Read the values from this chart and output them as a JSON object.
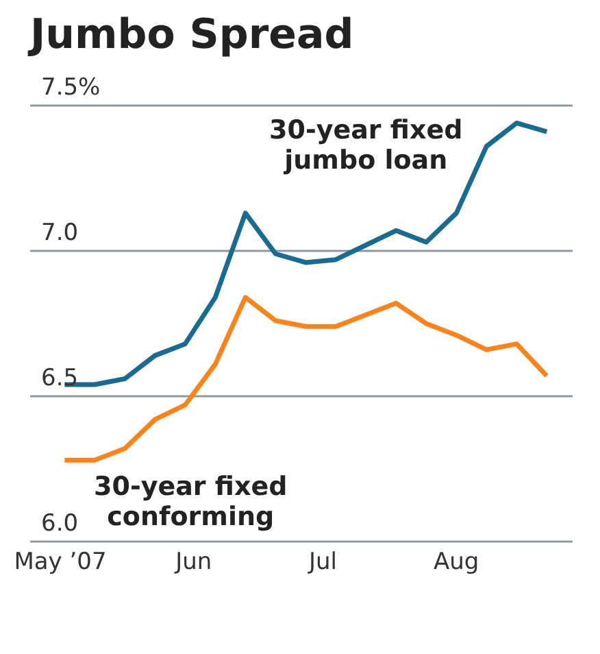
{
  "chart_data": {
    "type": "line",
    "title": "Jumbo Spread",
    "x": [
      "2007-05-02",
      "2007-05-09",
      "2007-05-16",
      "2007-05-23",
      "2007-05-30",
      "2007-06-06",
      "2007-06-13",
      "2007-06-20",
      "2007-06-27",
      "2007-07-04",
      "2007-07-11",
      "2007-07-18",
      "2007-07-25",
      "2007-08-01",
      "2007-08-08",
      "2007-08-15",
      "2007-08-22"
    ],
    "series": [
      {
        "name": "30-year fixed jumbo loan",
        "color": "#1a6b8f",
        "values": [
          6.54,
          6.54,
          6.56,
          6.64,
          6.68,
          6.84,
          7.13,
          6.99,
          6.96,
          6.97,
          7.02,
          7.07,
          7.03,
          7.13,
          7.36,
          7.44,
          7.41
        ]
      },
      {
        "name": "30-year fixed conforming",
        "color": "#f7841f",
        "values": [
          6.28,
          6.28,
          6.32,
          6.42,
          6.47,
          6.61,
          6.84,
          6.76,
          6.74,
          6.74,
          6.78,
          6.82,
          6.75,
          6.71,
          6.66,
          6.68,
          6.57
        ]
      }
    ],
    "xlim": [
      "2007-04-24",
      "2007-08-28"
    ],
    "xticks": [
      {
        "value": "2007-05-01",
        "label": "May ’07"
      },
      {
        "value": "2007-06-01",
        "label": "Jun"
      },
      {
        "value": "2007-07-01",
        "label": "Jul"
      },
      {
        "value": "2007-08-01",
        "label": "Aug"
      }
    ],
    "ylim": [
      6.0,
      7.5
    ],
    "yticks": [
      {
        "value": 6.0,
        "label": "6.0"
      },
      6.5,
      {
        "value": 7.0,
        "label": "7.0"
      },
      {
        "value": 7.5,
        "label": "7.5%"
      }
    ],
    "grid": "y",
    "marker": "none",
    "line_style": "solid"
  }
}
